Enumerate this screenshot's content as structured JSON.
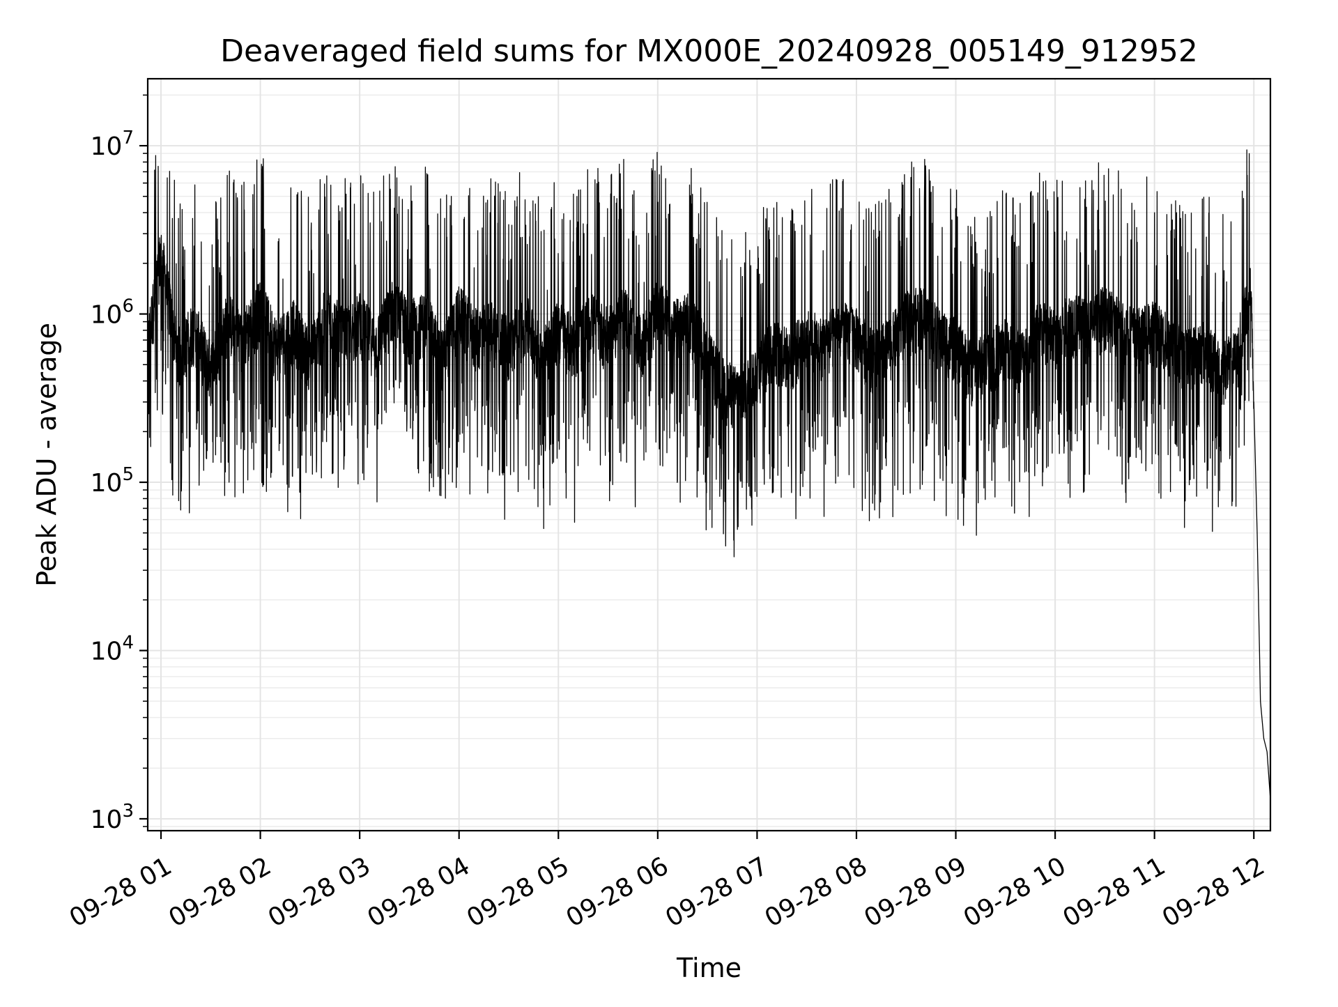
{
  "chart_data": {
    "type": "line",
    "title": "Deaveraged field sums for MX000E_20240928_005149_912952",
    "xlabel": "Time",
    "ylabel": "Peak ADU - average",
    "x_scale": "time",
    "y_scale": "log",
    "xlim": [
      "2024-09-28 00:52",
      "2024-09-28 12:10"
    ],
    "ylim": [
      850,
      25000000
    ],
    "x_ticks": [
      "09-28 01",
      "09-28 02",
      "09-28 03",
      "09-28 04",
      "09-28 05",
      "09-28 06",
      "09-28 07",
      "09-28 08",
      "09-28 09",
      "09-28 10",
      "09-28 11",
      "09-28 12"
    ],
    "y_ticks": [
      {
        "base": "10",
        "exp": "3",
        "value": 1000
      },
      {
        "base": "10",
        "exp": "4",
        "value": 10000
      },
      {
        "base": "10",
        "exp": "5",
        "value": 100000
      },
      {
        "base": "10",
        "exp": "6",
        "value": 1000000
      },
      {
        "base": "10",
        "exp": "7",
        "value": 10000000
      }
    ],
    "grid": true,
    "line_color": "#000000",
    "series": [
      {
        "x": [
          "2024-09-28 00:52",
          "2024-09-28 01:00",
          "2024-09-28 01:10",
          "2024-09-28 01:20",
          "2024-09-28 01:30",
          "2024-09-28 01:40",
          "2024-09-28 01:50",
          "2024-09-28 02:00",
          "2024-09-28 02:10",
          "2024-09-28 02:20",
          "2024-09-28 02:30",
          "2024-09-28 02:40",
          "2024-09-28 02:50",
          "2024-09-28 03:00",
          "2024-09-28 03:10",
          "2024-09-28 03:20",
          "2024-09-28 03:30",
          "2024-09-28 03:40",
          "2024-09-28 03:50",
          "2024-09-28 04:00",
          "2024-09-28 04:10",
          "2024-09-28 04:20",
          "2024-09-28 04:30",
          "2024-09-28 04:40",
          "2024-09-28 04:50",
          "2024-09-28 05:00",
          "2024-09-28 05:10",
          "2024-09-28 05:20",
          "2024-09-28 05:30",
          "2024-09-28 05:40",
          "2024-09-28 05:50",
          "2024-09-28 06:00",
          "2024-09-28 06:10",
          "2024-09-28 06:20",
          "2024-09-28 06:30",
          "2024-09-28 06:40",
          "2024-09-28 06:50",
          "2024-09-28 07:00",
          "2024-09-28 07:10",
          "2024-09-28 07:20",
          "2024-09-28 07:30",
          "2024-09-28 07:40",
          "2024-09-28 07:50",
          "2024-09-28 08:00",
          "2024-09-28 08:10",
          "2024-09-28 08:20",
          "2024-09-28 08:30",
          "2024-09-28 08:40",
          "2024-09-28 08:50",
          "2024-09-28 09:00",
          "2024-09-28 09:10",
          "2024-09-28 09:20",
          "2024-09-28 09:30",
          "2024-09-28 09:40",
          "2024-09-28 09:50",
          "2024-09-28 10:00",
          "2024-09-28 10:10",
          "2024-09-28 10:20",
          "2024-09-28 10:30",
          "2024-09-28 10:40",
          "2024-09-28 10:50",
          "2024-09-28 11:00",
          "2024-09-28 11:10",
          "2024-09-28 11:20",
          "2024-09-28 11:30",
          "2024-09-28 11:40",
          "2024-09-28 11:50",
          "2024-09-28 11:55",
          "2024-09-28 11:58",
          "2024-09-28 12:00",
          "2024-09-28 12:02",
          "2024-09-28 12:04",
          "2024-09-28 12:06",
          "2024-09-28 12:08",
          "2024-09-28 12:10"
        ],
        "y": [
          700000,
          2500000,
          600000,
          900000,
          500000,
          1000000,
          800000,
          1200000,
          700000,
          900000,
          600000,
          1100000,
          800000,
          1000000,
          700000,
          1200000,
          900000,
          1000000,
          600000,
          1100000,
          800000,
          900000,
          700000,
          1000000,
          600000,
          900000,
          700000,
          1000000,
          800000,
          1100000,
          700000,
          1200000,
          900000,
          1000000,
          600000,
          400000,
          350000,
          500000,
          700000,
          600000,
          800000,
          700000,
          900000,
          800000,
          600000,
          700000,
          1000000,
          1100000,
          800000,
          700000,
          500000,
          600000,
          700000,
          600000,
          900000,
          800000,
          1000000,
          900000,
          1100000,
          900000,
          800000,
          900000,
          700000,
          600000,
          700000,
          500000,
          600000,
          1200000,
          1700000,
          300000,
          50000,
          5000,
          3000,
          2500,
          1300
        ]
      }
    ]
  }
}
